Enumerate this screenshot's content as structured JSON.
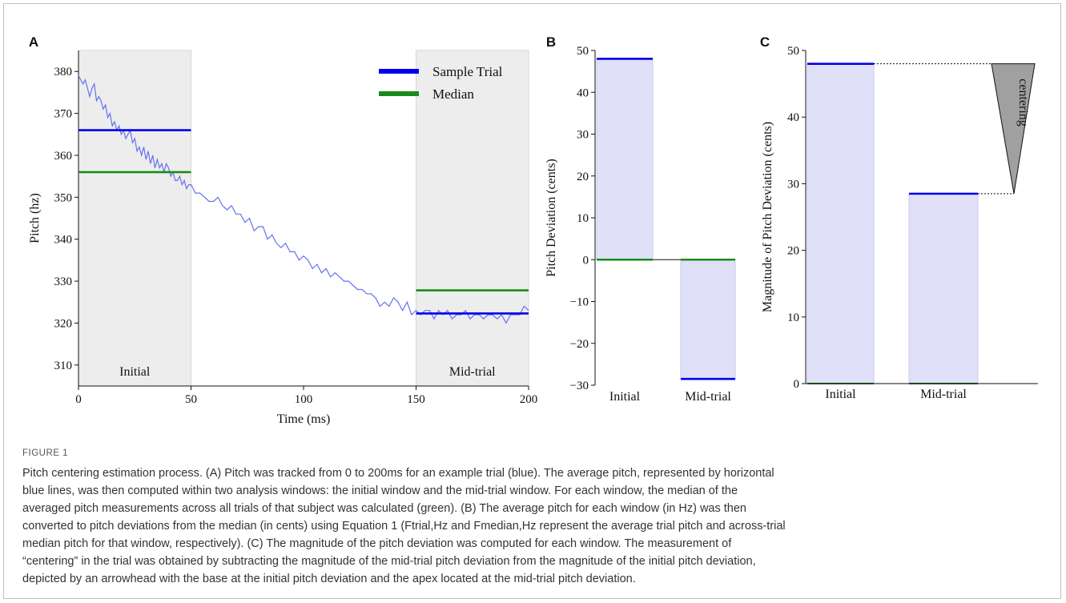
{
  "chart_data": [
    {
      "panel": "A",
      "type": "line",
      "xlabel": "Time (ms)",
      "ylabel": "Pitch (hz)",
      "xlim": [
        0,
        200
      ],
      "ylim": [
        305,
        385
      ],
      "xticks": [
        0,
        50,
        100,
        150,
        200
      ],
      "yticks": [
        310,
        320,
        330,
        340,
        350,
        360,
        370,
        380
      ],
      "windows": [
        {
          "label": "Initial",
          "x": [
            0,
            50
          ]
        },
        {
          "label": "Mid-trial",
          "x": [
            150,
            200
          ]
        }
      ],
      "legend": {
        "placement": "top-right",
        "entries": [
          {
            "name": "Sample Trial",
            "color": "#0000ee"
          },
          {
            "name": "Median",
            "color": "#1a8a1a"
          }
        ]
      },
      "trace": {
        "color": "#6670f0",
        "x": [
          0,
          2,
          3,
          4,
          5,
          6,
          7,
          8,
          9,
          10,
          11,
          12,
          13,
          14,
          15,
          16,
          17,
          18,
          19,
          20,
          21,
          22,
          23,
          24,
          25,
          26,
          27,
          28,
          29,
          30,
          31,
          32,
          33,
          34,
          35,
          36,
          37,
          38,
          39,
          40,
          41,
          42,
          43,
          44,
          45,
          46,
          47,
          48,
          49,
          50,
          52,
          54,
          56,
          58,
          60,
          62,
          64,
          66,
          68,
          70,
          72,
          74,
          76,
          78,
          80,
          82,
          84,
          86,
          88,
          90,
          92,
          94,
          96,
          98,
          100,
          102,
          104,
          106,
          108,
          110,
          112,
          114,
          116,
          118,
          120,
          122,
          124,
          126,
          128,
          130,
          132,
          134,
          136,
          138,
          140,
          142,
          144,
          146,
          148,
          150,
          152,
          154,
          156,
          158,
          160,
          162,
          164,
          166,
          168,
          170,
          172,
          174,
          176,
          178,
          180,
          182,
          184,
          186,
          188,
          190,
          192,
          194,
          196,
          198,
          200
        ],
        "y": [
          379,
          377,
          378,
          376,
          374,
          376,
          377,
          373,
          374,
          373,
          371,
          372,
          369,
          370,
          367,
          368,
          366,
          367,
          365,
          366,
          364,
          365,
          366,
          363,
          364,
          361,
          362,
          360,
          362,
          359,
          361,
          358,
          360,
          357,
          359,
          357,
          358,
          356,
          358,
          357,
          355,
          356,
          354,
          354,
          355,
          353,
          354,
          352,
          353,
          353,
          351,
          351,
          350,
          349,
          349,
          350,
          348,
          347,
          348,
          346,
          346,
          344,
          345,
          342,
          343,
          343,
          340,
          341,
          339,
          338,
          339,
          337,
          337,
          335,
          336,
          335,
          333,
          334,
          332,
          333,
          331,
          332,
          331,
          330,
          330,
          329,
          328,
          328,
          327,
          327,
          326,
          324,
          325,
          324,
          326,
          325,
          323,
          325,
          322,
          323,
          322,
          323,
          323,
          321,
          323,
          322,
          323,
          321,
          322,
          322,
          323,
          321,
          322,
          322,
          321,
          322,
          322,
          321,
          322,
          320,
          322,
          322,
          322,
          324,
          323
        ]
      },
      "lines": [
        {
          "series": "Sample Trial",
          "x": [
            0,
            50
          ],
          "y": 366
        },
        {
          "series": "Median",
          "x": [
            0,
            50
          ],
          "y": 356
        },
        {
          "series": "Sample Trial",
          "x": [
            150,
            200
          ],
          "y": 322.3
        },
        {
          "series": "Median",
          "x": [
            150,
            200
          ],
          "y": 327.8
        }
      ]
    },
    {
      "panel": "B",
      "type": "bar",
      "ylabel": "Pitch Deviation (cents)",
      "categories": [
        "Initial",
        "Mid-trial"
      ],
      "values": [
        48,
        -28.5
      ],
      "median_values": [
        0,
        0
      ],
      "ylim": [
        -30,
        50
      ],
      "yticks": [
        -30,
        -20,
        -10,
        0,
        10,
        20,
        30,
        40,
        50
      ],
      "fill": "#e0e0f8"
    },
    {
      "panel": "C",
      "type": "bar",
      "ylabel": "Magnitude of Pitch Deviation (cents)",
      "categories": [
        "Initial",
        "Mid-trial"
      ],
      "values": [
        48,
        28.5
      ],
      "ylim": [
        0,
        50
      ],
      "yticks": [
        0,
        10,
        20,
        30,
        40,
        50
      ],
      "fill": "#e0e0f8",
      "annotation": "centering"
    }
  ],
  "caption": {
    "label": "FIGURE 1",
    "lines": [
      "Pitch centering estimation process. (A) Pitch was tracked from 0 to 200ms for an example trial (blue). The average pitch, represented by horizontal",
      "blue lines, was then computed within two analysis windows: the initial window and the mid-trial window. For each window, the median of the",
      "averaged pitch measurements across all trials of that subject was calculated (green). (B) The average pitch for each window (in Hz) was then",
      "converted to pitch deviations from the median (in cents) using Equation 1 (Ftrial,Hz and Fmedian,Hz represent the average trial pitch and across-trial",
      "median pitch for that window, respectively). (C) The magnitude of the pitch deviation was computed for each window. The measurement of",
      "“centering” in the trial was obtained by subtracting the magnitude of the mid-trial pitch deviation from the magnitude of the initial pitch deviation,",
      "depicted by an arrowhead with the base at the initial pitch deviation and the apex located at the mid-trial pitch deviation."
    ]
  }
}
